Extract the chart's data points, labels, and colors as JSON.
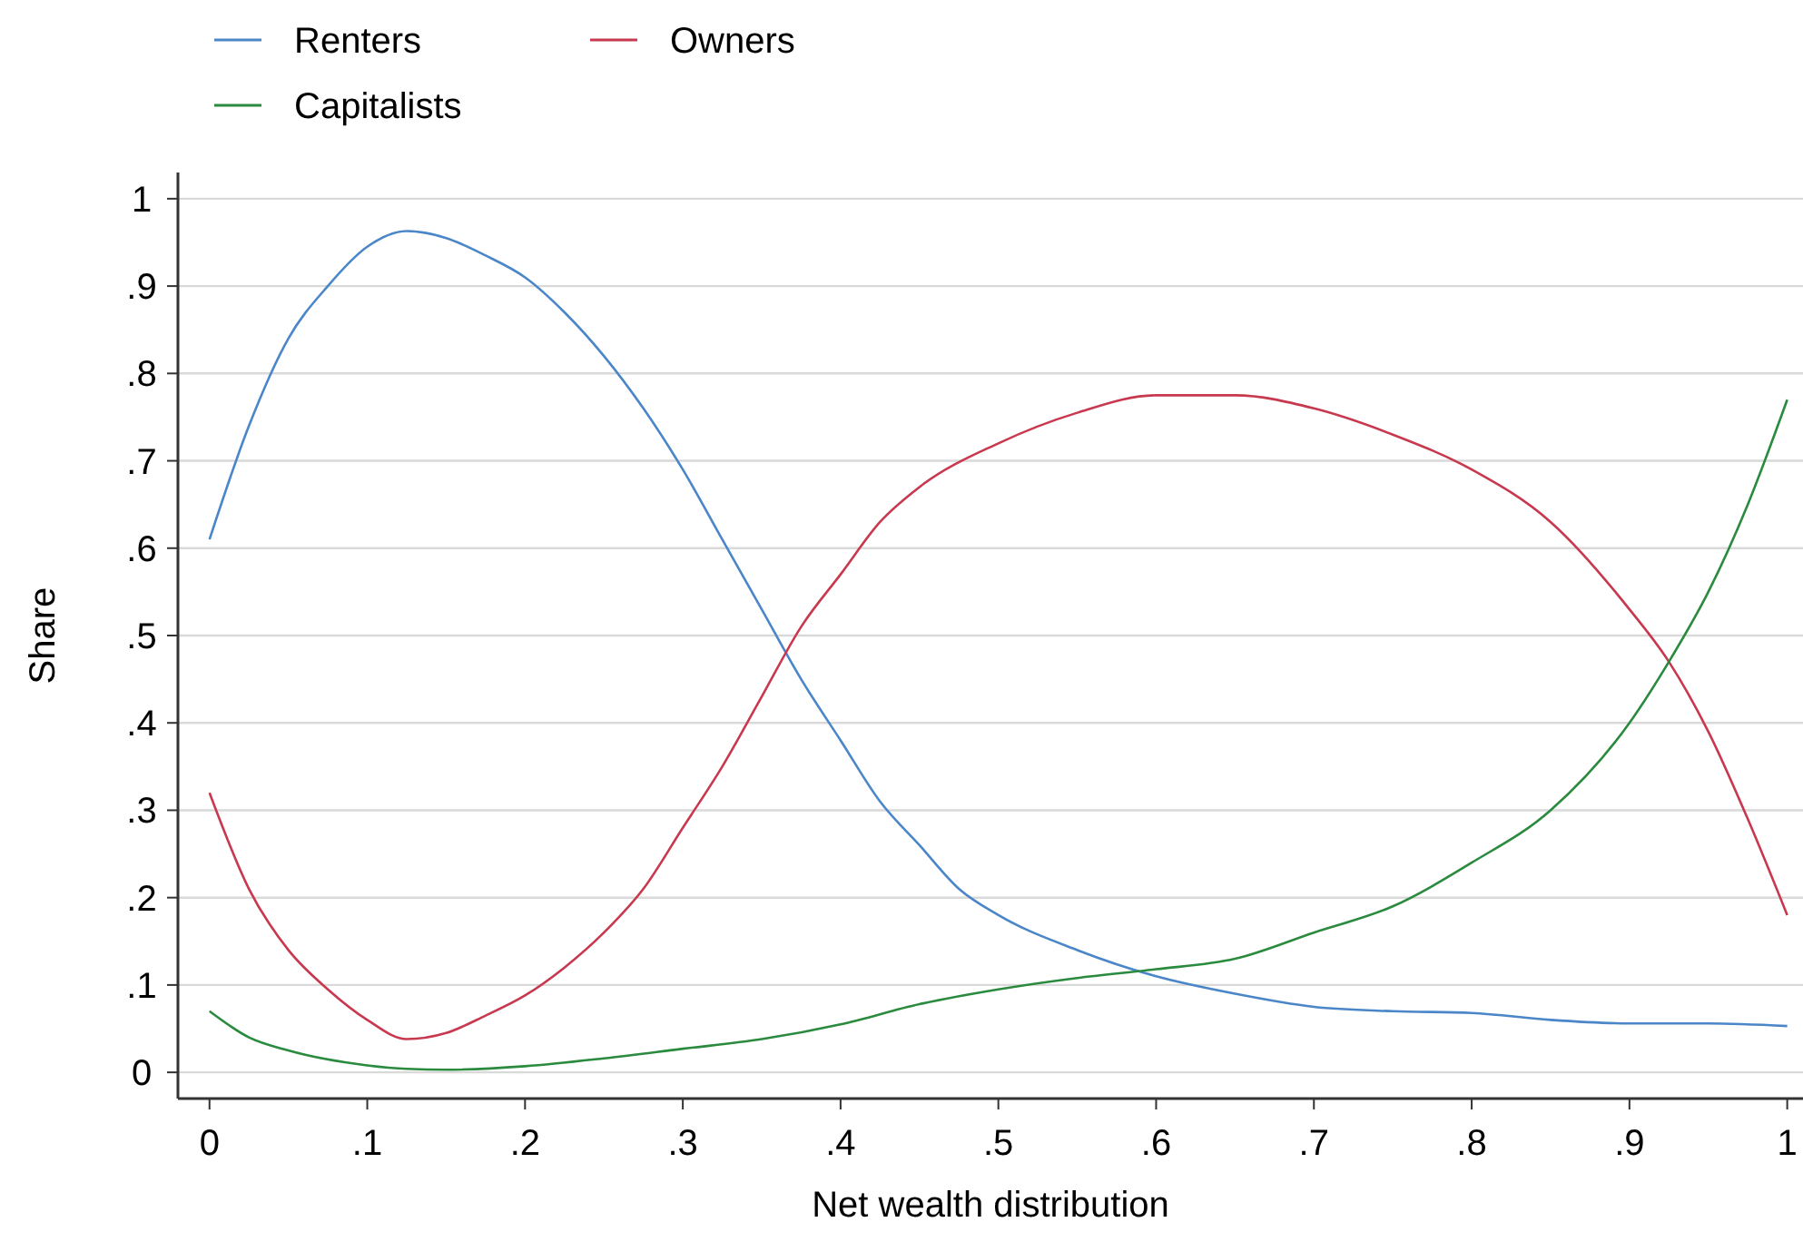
{
  "chart_data": {
    "type": "line",
    "xlabel": "Net wealth distribution",
    "ylabel": "Share",
    "xlim": [
      -0.02,
      1.01
    ],
    "ylim": [
      -0.03,
      1.03
    ],
    "xticks": [
      0,
      {
        "value": 0.1,
        "label": ".1"
      },
      {
        "value": 0.2,
        "label": ".2"
      },
      {
        "value": 0.3,
        "label": ".3"
      },
      {
        "value": 0.4,
        "label": ".4"
      },
      {
        "value": 0.5,
        "label": ".5"
      },
      {
        "value": 0.6,
        "label": ".6"
      },
      {
        "value": 0.7,
        "label": ".7"
      },
      {
        "value": 0.8,
        "label": ".8"
      },
      {
        "value": 0.9,
        "label": ".9"
      },
      1
    ],
    "yticks": [
      0,
      {
        "value": 0.1,
        "label": ".1"
      },
      {
        "value": 0.2,
        "label": ".2"
      },
      {
        "value": 0.3,
        "label": ".3"
      },
      {
        "value": 0.4,
        "label": ".4"
      },
      {
        "value": 0.5,
        "label": ".5"
      },
      {
        "value": 0.6,
        "label": ".6"
      },
      {
        "value": 0.7,
        "label": ".7"
      },
      {
        "value": 0.8,
        "label": ".8"
      },
      {
        "value": 0.9,
        "label": ".9"
      },
      1
    ],
    "grid": "y",
    "legend": "top",
    "marker": "none",
    "line_style": "solid",
    "series": [
      {
        "name": "Renters",
        "color": "#4a86c8",
        "x": [
          0,
          0.025,
          0.05,
          0.075,
          0.1,
          0.125,
          0.15,
          0.175,
          0.2,
          0.225,
          0.25,
          0.275,
          0.3,
          0.325,
          0.35,
          0.375,
          0.4,
          0.425,
          0.45,
          0.475,
          0.5,
          0.55,
          0.6,
          0.65,
          0.7,
          0.75,
          0.8,
          0.85,
          0.9,
          0.95,
          1
        ],
        "values": [
          0.61,
          0.74,
          0.84,
          0.9,
          0.945,
          0.963,
          0.955,
          0.935,
          0.91,
          0.87,
          0.82,
          0.76,
          0.69,
          0.61,
          0.53,
          0.45,
          0.38,
          0.31,
          0.26,
          0.21,
          0.18,
          0.14,
          0.11,
          0.09,
          0.075,
          0.07,
          0.068,
          0.06,
          0.056,
          0.056,
          0.053
        ]
      },
      {
        "name": "Owners",
        "color": "#c8384e",
        "x": [
          0,
          0.025,
          0.05,
          0.075,
          0.1,
          0.125,
          0.15,
          0.175,
          0.2,
          0.225,
          0.25,
          0.275,
          0.3,
          0.325,
          0.35,
          0.375,
          0.4,
          0.425,
          0.45,
          0.5,
          0.55,
          0.6,
          0.65,
          0.7,
          0.75,
          0.8,
          0.85,
          0.9,
          0.925,
          0.95,
          0.975,
          1
        ],
        "values": [
          0.32,
          0.21,
          0.14,
          0.095,
          0.06,
          0.038,
          0.045,
          0.065,
          0.088,
          0.12,
          0.16,
          0.21,
          0.28,
          0.35,
          0.43,
          0.51,
          0.57,
          0.63,
          0.67,
          0.72,
          0.755,
          0.775,
          0.775,
          0.76,
          0.73,
          0.69,
          0.63,
          0.53,
          0.47,
          0.39,
          0.29,
          0.18
        ]
      },
      {
        "name": "Capitalists",
        "color": "#2a8a3e",
        "x": [
          0,
          0.025,
          0.05,
          0.1,
          0.125,
          0.15,
          0.2,
          0.25,
          0.3,
          0.35,
          0.4,
          0.45,
          0.5,
          0.55,
          0.6,
          0.65,
          0.7,
          0.75,
          0.8,
          0.85,
          0.9,
          0.925,
          0.95,
          0.975,
          1
        ],
        "values": [
          0.07,
          0.04,
          0.025,
          0.008,
          0.004,
          0.003,
          0.007,
          0.016,
          0.027,
          0.038,
          0.055,
          0.078,
          0.095,
          0.108,
          0.118,
          0.13,
          0.16,
          0.19,
          0.24,
          0.3,
          0.4,
          0.47,
          0.55,
          0.65,
          0.77
        ]
      }
    ]
  }
}
